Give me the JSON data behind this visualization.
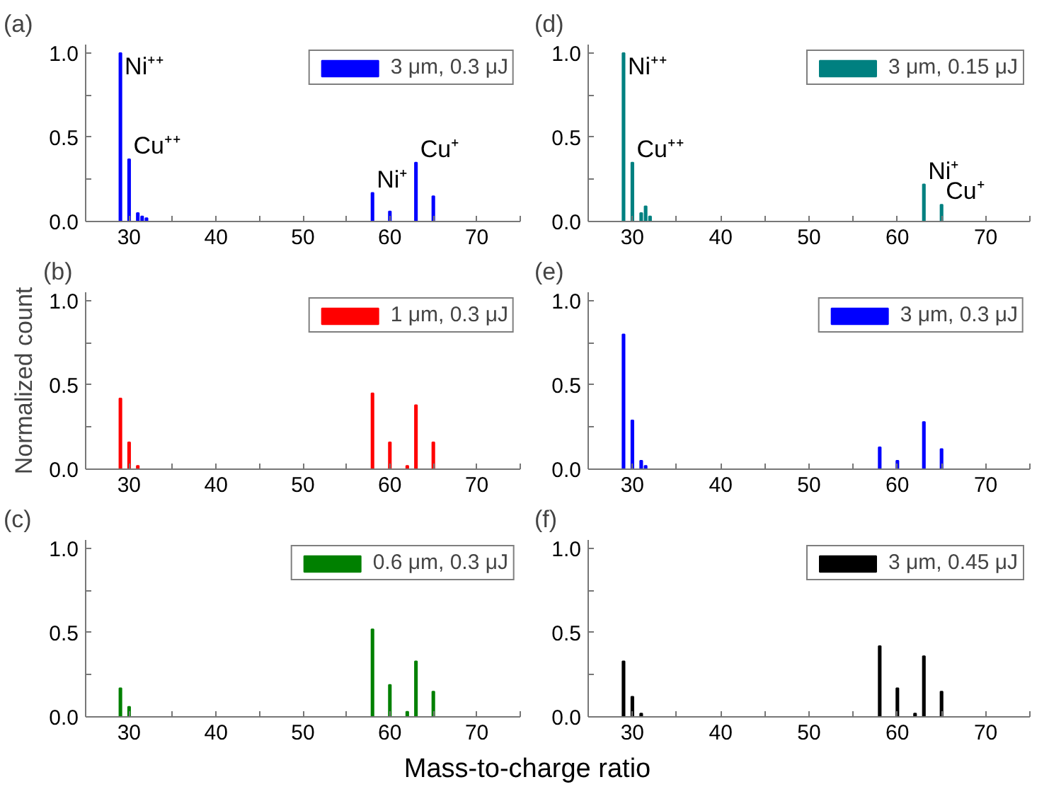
{
  "chart_data": [
    {
      "type": "bar",
      "title": "(a)",
      "x": [
        29,
        30,
        31,
        31.5,
        32,
        58,
        60,
        63,
        65
      ],
      "series": [
        {
          "name": "3 μm, 0.3 μJ",
          "color": "#0000ff",
          "values": [
            1.0,
            0.37,
            0.05,
            0.03,
            0.02,
            0.17,
            0.06,
            0.35,
            0.15
          ]
        }
      ],
      "xlim": [
        25,
        75
      ],
      "ylim": [
        0,
        1.05
      ],
      "xticks": [
        30,
        {
          "value": 35,
          "label": null
        },
        40,
        {
          "value": 45,
          "label": null
        },
        50,
        {
          "value": 55,
          "label": null
        },
        60,
        {
          "value": 65,
          "label": null
        },
        70,
        {
          "value": 75,
          "label": null
        }
      ],
      "yticks": [
        {
          "value": 0,
          "label": "0.0"
        },
        {
          "value": 0.25,
          "label": null
        },
        {
          "value": 0.5,
          "label": "0.5"
        },
        {
          "value": 0.75,
          "label": null
        },
        {
          "value": 1,
          "label": "1.0"
        }
      ],
      "legend": "top right",
      "annotations": [
        {
          "text": "Ni⁺⁺",
          "x": 29,
          "y": 1.0
        },
        {
          "text": "Cu⁺⁺",
          "x": 30,
          "y": 0.37
        },
        {
          "text": "Ni⁺",
          "x": 58,
          "y": 0.17
        },
        {
          "text": "Cu⁺",
          "x": 63,
          "y": 0.35
        }
      ]
    },
    {
      "type": "bar",
      "title": "(d)",
      "x": [
        29,
        30,
        31,
        31.5,
        32,
        63,
        65
      ],
      "series": [
        {
          "name": "3 μm, 0.15 μJ",
          "color": "#008080",
          "values": [
            1.0,
            0.35,
            0.05,
            0.09,
            0.03,
            0.22,
            0.1
          ]
        }
      ],
      "xlim": [
        25,
        75
      ],
      "ylim": [
        0,
        1.05
      ],
      "xticks": [
        30,
        {
          "value": 35,
          "label": null
        },
        40,
        {
          "value": 45,
          "label": null
        },
        50,
        {
          "value": 55,
          "label": null
        },
        60,
        {
          "value": 65,
          "label": null
        },
        70,
        {
          "value": 75,
          "label": null
        }
      ],
      "yticks": [
        {
          "value": 0,
          "label": "0.0"
        },
        {
          "value": 0.25,
          "label": null
        },
        {
          "value": 0.5,
          "label": "0.5"
        },
        {
          "value": 0.75,
          "label": null
        },
        {
          "value": 1,
          "label": "1.0"
        }
      ],
      "legend": "top right",
      "annotations": [
        {
          "text": "Ni⁺⁺",
          "x": 29,
          "y": 1.0
        },
        {
          "text": "Cu⁺⁺",
          "x": 30,
          "y": 0.35
        },
        {
          "text": "Ni⁺",
          "x": 63,
          "y": 0.22
        },
        {
          "text": "Cu⁺",
          "x": 65,
          "y": 0.1
        }
      ]
    },
    {
      "type": "bar",
      "title": "(b)",
      "ylabel": "Normalized count",
      "x": [
        29,
        30,
        31,
        58,
        60,
        62,
        63,
        65
      ],
      "series": [
        {
          "name": "1 μm, 0.3 μJ",
          "color": "#ff0000",
          "values": [
            0.42,
            0.16,
            0.02,
            0.45,
            0.16,
            0.02,
            0.38,
            0.16
          ]
        }
      ],
      "xlim": [
        25,
        75
      ],
      "ylim": [
        0,
        1.05
      ],
      "xticks": [
        30,
        {
          "value": 35,
          "label": null
        },
        40,
        {
          "value": 45,
          "label": null
        },
        50,
        {
          "value": 55,
          "label": null
        },
        60,
        {
          "value": 65,
          "label": null
        },
        70,
        {
          "value": 75,
          "label": null
        }
      ],
      "yticks": [
        {
          "value": 0,
          "label": "0.0"
        },
        {
          "value": 0.25,
          "label": null
        },
        {
          "value": 0.5,
          "label": "0.5"
        },
        {
          "value": 0.75,
          "label": null
        },
        {
          "value": 1,
          "label": "1.0"
        }
      ],
      "legend": "top right"
    },
    {
      "type": "bar",
      "title": "(e)",
      "x": [
        29,
        30,
        31,
        31.5,
        58,
        60,
        63,
        65
      ],
      "series": [
        {
          "name": "3 μm, 0.3 μJ",
          "color": "#0000ff",
          "values": [
            0.8,
            0.29,
            0.05,
            0.02,
            0.13,
            0.05,
            0.28,
            0.12
          ]
        }
      ],
      "xlim": [
        25,
        75
      ],
      "ylim": [
        0,
        1.05
      ],
      "xticks": [
        30,
        {
          "value": 35,
          "label": null
        },
        40,
        {
          "value": 45,
          "label": null
        },
        50,
        {
          "value": 55,
          "label": null
        },
        60,
        {
          "value": 65,
          "label": null
        },
        70,
        {
          "value": 75,
          "label": null
        }
      ],
      "yticks": [
        {
          "value": 0,
          "label": "0.0"
        },
        {
          "value": 0.25,
          "label": null
        },
        {
          "value": 0.5,
          "label": "0.5"
        },
        {
          "value": 0.75,
          "label": null
        },
        {
          "value": 1,
          "label": "1.0"
        }
      ],
      "legend": "top right"
    },
    {
      "type": "bar",
      "title": "(c)",
      "xlabel": "Mass-to-charge ratio",
      "x": [
        29,
        30,
        58,
        60,
        62,
        63,
        65
      ],
      "series": [
        {
          "name": "0.6 μm, 0.3 μJ",
          "color": "#008000",
          "values": [
            0.17,
            0.06,
            0.52,
            0.19,
            0.03,
            0.33,
            0.15
          ]
        }
      ],
      "xlim": [
        25,
        75
      ],
      "ylim": [
        0,
        1.05
      ],
      "xticks": [
        30,
        {
          "value": 35,
          "label": null
        },
        40,
        {
          "value": 45,
          "label": null
        },
        50,
        {
          "value": 55,
          "label": null
        },
        60,
        {
          "value": 65,
          "label": null
        },
        70,
        {
          "value": 75,
          "label": null
        }
      ],
      "yticks": [
        {
          "value": 0,
          "label": "0.0"
        },
        {
          "value": 0.25,
          "label": null
        },
        {
          "value": 0.5,
          "label": "0.5"
        },
        {
          "value": 0.75,
          "label": null
        },
        {
          "value": 1,
          "label": "1.0"
        }
      ],
      "legend": "top right"
    },
    {
      "type": "bar",
      "title": "(f)",
      "x": [
        29,
        30,
        31,
        58,
        60,
        62,
        63,
        65
      ],
      "series": [
        {
          "name": "3 μm, 0.45 μJ",
          "color": "#000000",
          "values": [
            0.33,
            0.12,
            0.02,
            0.42,
            0.17,
            0.02,
            0.36,
            0.15
          ]
        }
      ],
      "xlim": [
        25,
        75
      ],
      "ylim": [
        0,
        1.05
      ],
      "xticks": [
        30,
        {
          "value": 35,
          "label": null
        },
        40,
        {
          "value": 45,
          "label": null
        },
        50,
        {
          "value": 55,
          "label": null
        },
        60,
        {
          "value": 65,
          "label": null
        },
        70,
        {
          "value": 75,
          "label": null
        }
      ],
      "yticks": [
        {
          "value": 0,
          "label": "0.0"
        },
        {
          "value": 0.25,
          "label": null
        },
        {
          "value": 0.5,
          "label": "0.5"
        },
        {
          "value": 0.75,
          "label": null
        },
        {
          "value": 1,
          "label": "1.0"
        }
      ],
      "legend": "top right"
    }
  ]
}
